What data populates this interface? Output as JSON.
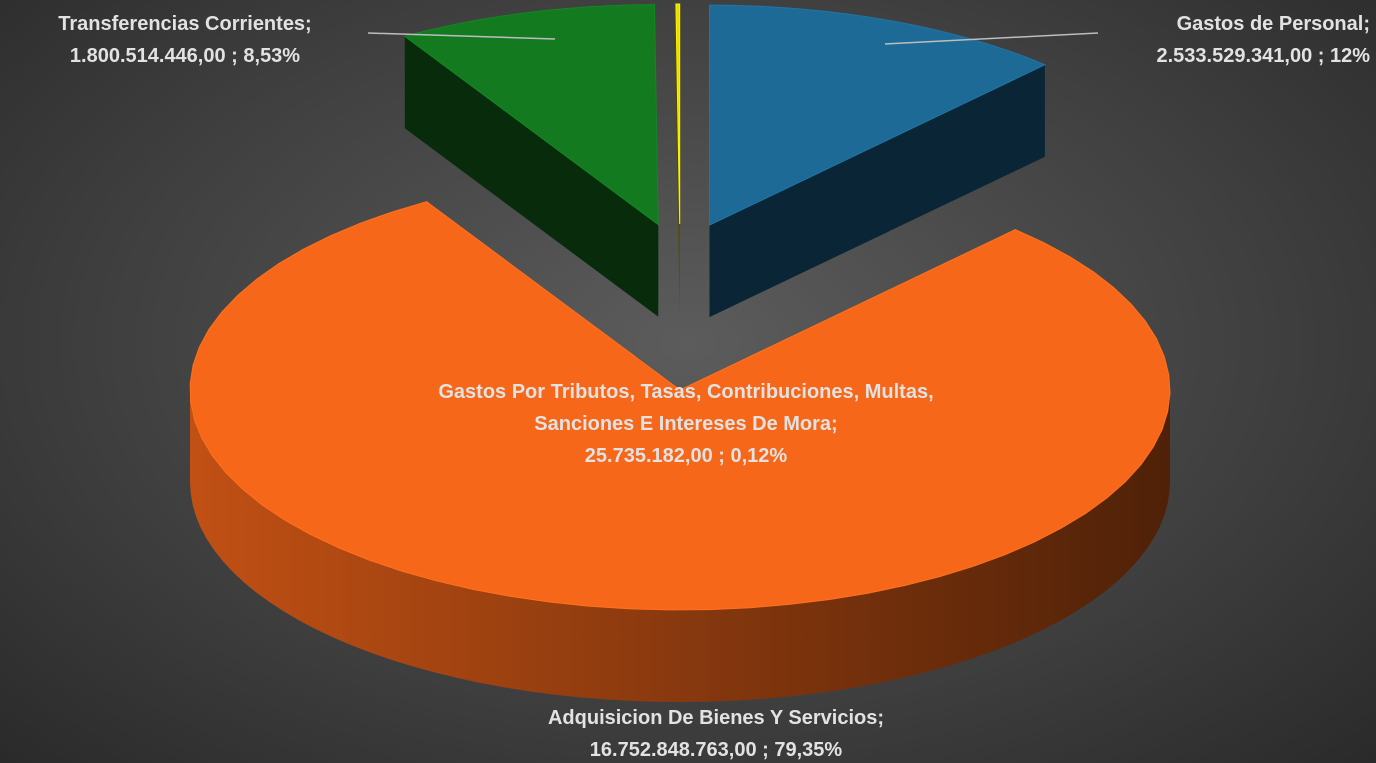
{
  "chart_data": {
    "type": "pie",
    "categories": [
      "Gastos de Personal;",
      "Adquisicion De Bienes Y Servicios;",
      "Transferencias Corrientes;",
      "Gastos Por Tributos, Tasas, Contribuciones, Multas, Sanciones E Intereses De Mora;"
    ],
    "values": [
      2533529341,
      16752848763,
      1800514446,
      25735182
    ],
    "value_labels": [
      "2.533.529.341,00 ; 12%",
      "16.752.848.763,00 ; 79,35%",
      "1.800.514.446,00 ; 8,53%",
      "25.735.182,00 ; 0,12%"
    ],
    "colors": [
      "#1d6a96",
      "#f7671a",
      "#137a20",
      "#e8dc00"
    ]
  }
}
